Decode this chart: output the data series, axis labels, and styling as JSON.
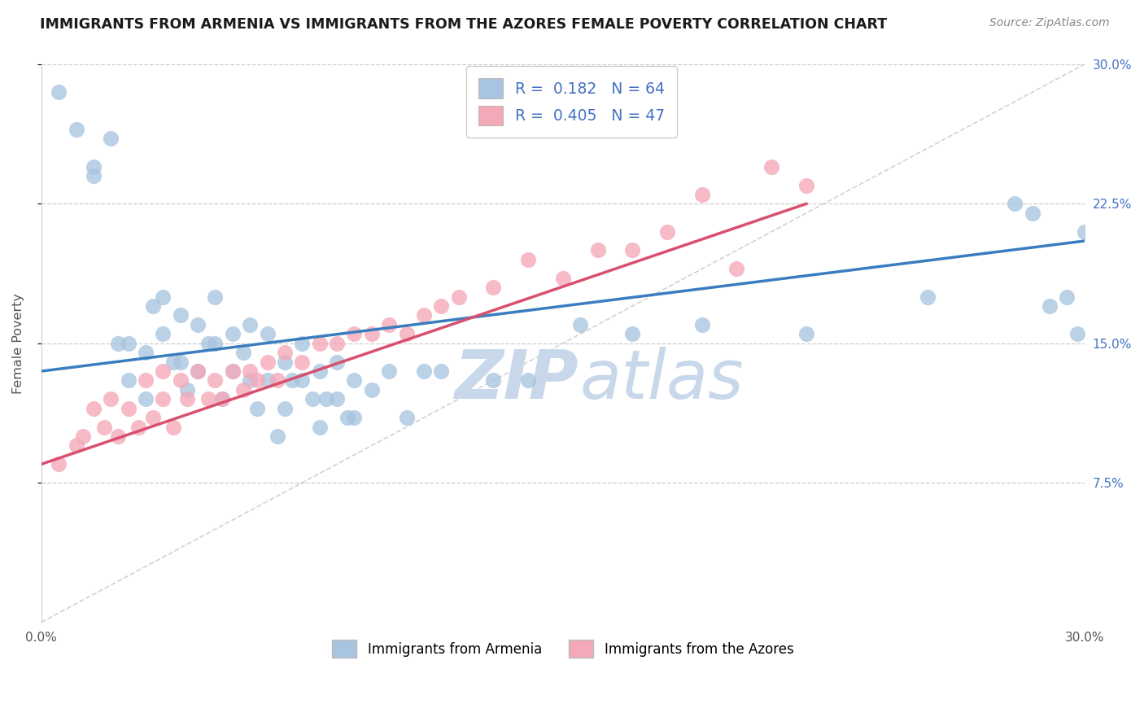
{
  "title": "IMMIGRANTS FROM ARMENIA VS IMMIGRANTS FROM THE AZORES FEMALE POVERTY CORRELATION CHART",
  "source": "Source: ZipAtlas.com",
  "ylabel": "Female Poverty",
  "xlim": [
    0.0,
    0.3
  ],
  "ylim": [
    0.0,
    0.3
  ],
  "yticks": [
    0.075,
    0.15,
    0.225,
    0.3
  ],
  "ytick_labels_right": [
    "7.5%",
    "15.0%",
    "22.5%",
    "30.0%"
  ],
  "xtick_vals": [
    0.0,
    0.3
  ],
  "xtick_labels": [
    "0.0%",
    "30.0%"
  ],
  "legend_R1": "0.182",
  "legend_N1": "64",
  "legend_R2": "0.405",
  "legend_N2": "47",
  "color_armenia": "#a8c4e0",
  "color_azores": "#f4a8b8",
  "line_color_armenia": "#3a7dbf",
  "line_color_azores": "#d94f6e",
  "diagonal_color": "#c0c0c0",
  "background_color": "#ffffff",
  "grid_color": "#cccccc",
  "watermark_color": "#c8d8ea",
  "title_color": "#1a1a1a",
  "source_color": "#888888",
  "axis_label_color": "#555555",
  "tick_color_right": "#4472c4",
  "armenia_x": [
    0.005,
    0.01,
    0.015,
    0.015,
    0.02,
    0.022,
    0.025,
    0.025,
    0.03,
    0.03,
    0.032,
    0.035,
    0.035,
    0.038,
    0.04,
    0.04,
    0.042,
    0.045,
    0.045,
    0.048,
    0.05,
    0.05,
    0.052,
    0.055,
    0.055,
    0.058,
    0.06,
    0.06,
    0.062,
    0.065,
    0.065,
    0.068,
    0.07,
    0.07,
    0.072,
    0.075,
    0.075,
    0.078,
    0.08,
    0.08,
    0.082,
    0.085,
    0.085,
    0.088,
    0.09,
    0.09,
    0.095,
    0.1,
    0.105,
    0.11,
    0.115,
    0.13,
    0.14,
    0.155,
    0.17,
    0.19,
    0.22,
    0.255,
    0.28,
    0.285,
    0.29,
    0.295,
    0.298,
    0.3
  ],
  "armenia_y": [
    0.285,
    0.265,
    0.24,
    0.245,
    0.26,
    0.15,
    0.15,
    0.13,
    0.145,
    0.12,
    0.17,
    0.155,
    0.175,
    0.14,
    0.165,
    0.14,
    0.125,
    0.16,
    0.135,
    0.15,
    0.175,
    0.15,
    0.12,
    0.155,
    0.135,
    0.145,
    0.16,
    0.13,
    0.115,
    0.155,
    0.13,
    0.1,
    0.14,
    0.115,
    0.13,
    0.15,
    0.13,
    0.12,
    0.135,
    0.105,
    0.12,
    0.14,
    0.12,
    0.11,
    0.13,
    0.11,
    0.125,
    0.135,
    0.11,
    0.135,
    0.135,
    0.13,
    0.13,
    0.16,
    0.155,
    0.16,
    0.155,
    0.175,
    0.225,
    0.22,
    0.17,
    0.175,
    0.155,
    0.21
  ],
  "azores_x": [
    0.005,
    0.01,
    0.012,
    0.015,
    0.018,
    0.02,
    0.022,
    0.025,
    0.028,
    0.03,
    0.032,
    0.035,
    0.035,
    0.038,
    0.04,
    0.042,
    0.045,
    0.048,
    0.05,
    0.052,
    0.055,
    0.058,
    0.06,
    0.062,
    0.065,
    0.068,
    0.07,
    0.075,
    0.08,
    0.085,
    0.09,
    0.095,
    0.1,
    0.105,
    0.11,
    0.115,
    0.12,
    0.13,
    0.14,
    0.15,
    0.16,
    0.17,
    0.18,
    0.19,
    0.2,
    0.21,
    0.22
  ],
  "azores_y": [
    0.085,
    0.095,
    0.1,
    0.115,
    0.105,
    0.12,
    0.1,
    0.115,
    0.105,
    0.13,
    0.11,
    0.12,
    0.135,
    0.105,
    0.13,
    0.12,
    0.135,
    0.12,
    0.13,
    0.12,
    0.135,
    0.125,
    0.135,
    0.13,
    0.14,
    0.13,
    0.145,
    0.14,
    0.15,
    0.15,
    0.155,
    0.155,
    0.16,
    0.155,
    0.165,
    0.17,
    0.175,
    0.18,
    0.195,
    0.185,
    0.2,
    0.2,
    0.21,
    0.23,
    0.19,
    0.245,
    0.235
  ],
  "arm_line_x0": 0.0,
  "arm_line_x1": 0.3,
  "arm_line_y0": 0.135,
  "arm_line_y1": 0.205,
  "az_line_x0": 0.0,
  "az_line_x1": 0.22,
  "az_line_y0": 0.085,
  "az_line_y1": 0.225
}
